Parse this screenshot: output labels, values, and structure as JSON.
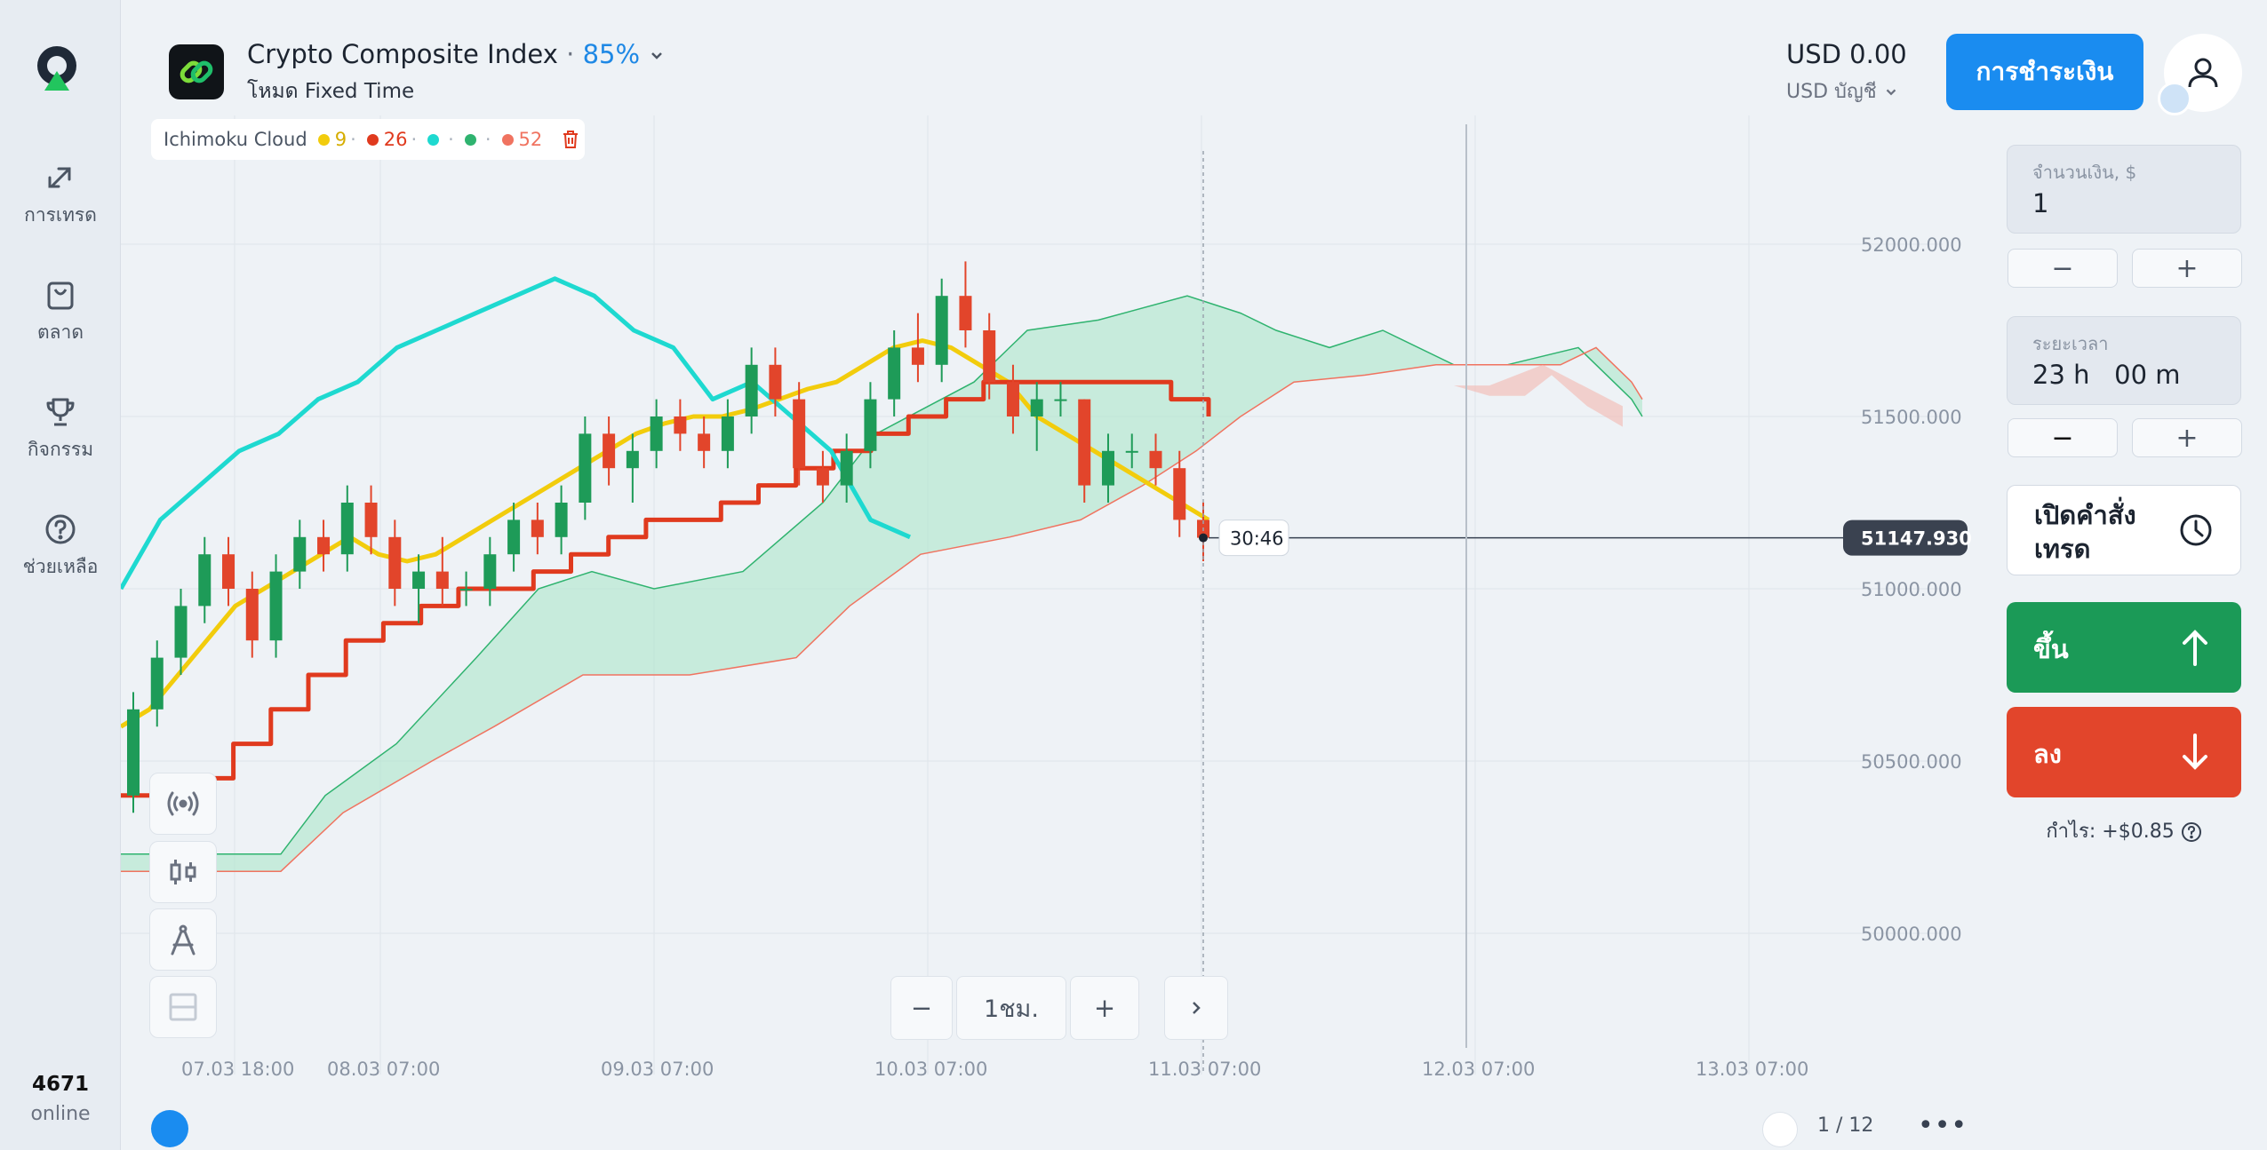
{
  "sidebar": {
    "items": [
      {
        "label": "การเทรด",
        "icon": "trade-arrows-icon"
      },
      {
        "label": "ตลาด",
        "icon": "shopping-bag-icon"
      },
      {
        "label": "กิจกรรม",
        "icon": "trophy-icon"
      },
      {
        "label": "ช่วยเหลือ",
        "icon": "help-circle-icon"
      }
    ],
    "online_count": "4671",
    "online_label": "online"
  },
  "header": {
    "asset_name": "Crypto Composite Index",
    "payout": "85%",
    "mode": "โหมด Fixed Time",
    "balance": "USD 0.00",
    "account": "USD บัญชี",
    "deposit_label": "การชำระเงิน"
  },
  "indicator": {
    "name": "Ichimoku Cloud",
    "params": [
      {
        "value": "9",
        "color": "#f2cc0c"
      },
      {
        "value": "26",
        "color": "#e03a1e"
      },
      {
        "value": "",
        "color": "#1ed9d0"
      },
      {
        "value": "",
        "color": "#2fb36f"
      },
      {
        "value": "52",
        "color": "#f07360"
      }
    ]
  },
  "chart": {
    "current_price": "51147.930",
    "countdown": "30:46",
    "timeframe": "1ชม.",
    "page": "1 / 12"
  },
  "chart_data": {
    "type": "candlestick",
    "y_ticks": [
      "52000.000",
      "51500.000",
      "51000.000",
      "50500.000",
      "50000.000"
    ],
    "x_ticks": [
      "07.03 18:00",
      "08.03 07:00",
      "09.03 07:00",
      "10.03 07:00",
      "11.03 07:00",
      "12.03 07:00",
      "13.03 07:00"
    ],
    "ylim": [
      49900,
      52200
    ],
    "ohlc": [
      [
        50400,
        50700,
        50350,
        50650
      ],
      [
        50650,
        50850,
        50600,
        50800
      ],
      [
        50800,
        51000,
        50750,
        50950
      ],
      [
        50950,
        51150,
        50900,
        51100
      ],
      [
        51100,
        51150,
        50950,
        51000
      ],
      [
        51000,
        51050,
        50800,
        50850
      ],
      [
        50850,
        51100,
        50800,
        51050
      ],
      [
        51050,
        51200,
        51000,
        51150
      ],
      [
        51150,
        51200,
        51050,
        51100
      ],
      [
        51100,
        51300,
        51050,
        51250
      ],
      [
        51250,
        51300,
        51100,
        51150
      ],
      [
        51150,
        51200,
        50950,
        51000
      ],
      [
        51000,
        51100,
        50900,
        51050
      ],
      [
        51050,
        51150,
        50950,
        51000
      ],
      [
        51000,
        51050,
        50950,
        51000
      ],
      [
        51000,
        51150,
        50950,
        51100
      ],
      [
        51100,
        51250,
        51050,
        51200
      ],
      [
        51200,
        51250,
        51100,
        51150
      ],
      [
        51150,
        51300,
        51100,
        51250
      ],
      [
        51250,
        51500,
        51200,
        51450
      ],
      [
        51450,
        51500,
        51300,
        51350
      ],
      [
        51350,
        51450,
        51250,
        51400
      ],
      [
        51400,
        51550,
        51350,
        51500
      ],
      [
        51500,
        51550,
        51400,
        51450
      ],
      [
        51450,
        51500,
        51350,
        51400
      ],
      [
        51400,
        51550,
        51350,
        51500
      ],
      [
        51500,
        51700,
        51450,
        51650
      ],
      [
        51650,
        51700,
        51500,
        51550
      ],
      [
        51550,
        51600,
        51300,
        51350
      ],
      [
        51350,
        51400,
        51250,
        51300
      ],
      [
        51300,
        51450,
        51250,
        51400
      ],
      [
        51400,
        51600,
        51350,
        51550
      ],
      [
        51550,
        51750,
        51500,
        51700
      ],
      [
        51700,
        51800,
        51600,
        51650
      ],
      [
        51650,
        51900,
        51600,
        51850
      ],
      [
        51850,
        51950,
        51700,
        51750
      ],
      [
        51750,
        51800,
        51550,
        51600
      ],
      [
        51600,
        51650,
        51450,
        51500
      ],
      [
        51500,
        51600,
        51400,
        51550
      ],
      [
        51550,
        51600,
        51500,
        51550
      ],
      [
        51550,
        51550,
        51250,
        51300
      ],
      [
        51300,
        51450,
        51250,
        51400
      ],
      [
        51400,
        51450,
        51350,
        51400
      ],
      [
        51400,
        51450,
        51300,
        51350
      ],
      [
        51350,
        51400,
        51150,
        51200
      ],
      [
        51200,
        51250,
        51080,
        51148
      ]
    ],
    "series": [
      {
        "name": "9",
        "values": [
          50600,
          50650,
          50750,
          50850,
          50950,
          51000,
          51050,
          51100,
          51150,
          51100,
          51080,
          51100,
          51150,
          51200,
          51250,
          51300,
          51350,
          51400,
          51450,
          51480,
          51500,
          51500,
          51520,
          51550,
          51580,
          51600,
          51650,
          51700,
          51720,
          51700,
          51650,
          51600,
          51500,
          51450,
          51400,
          51350,
          51300,
          51250,
          51200
        ]
      },
      {
        "name": "26",
        "values": [
          50400,
          50400,
          50450,
          50550,
          50650,
          50750,
          50850,
          50900,
          50950,
          51000,
          51000,
          51050,
          51100,
          51150,
          51200,
          51200,
          51250,
          51300,
          51350,
          51400,
          51450,
          51500,
          51550,
          51600,
          51600,
          51600,
          51600,
          51600,
          51550,
          51500
        ]
      },
      {
        "name": "",
        "values": [
          51000,
          51200,
          51300,
          51400,
          51450,
          51550,
          51600,
          51700,
          51750,
          51800,
          51850,
          51900,
          51850,
          51750,
          51700,
          51550,
          51600,
          51500,
          51400,
          51200,
          51150
        ]
      }
    ]
  },
  "panel": {
    "amount_label": "จำนวนเงิน, $",
    "amount_value": "1",
    "duration_label": "ระยะเวลา",
    "duration_value": "23 h   00 m",
    "open_order_label": "เปิดคำสั่งเทรด",
    "up_label": "ขึ้น",
    "down_label": "ลง",
    "profit": "กำไร: +$0.85"
  }
}
